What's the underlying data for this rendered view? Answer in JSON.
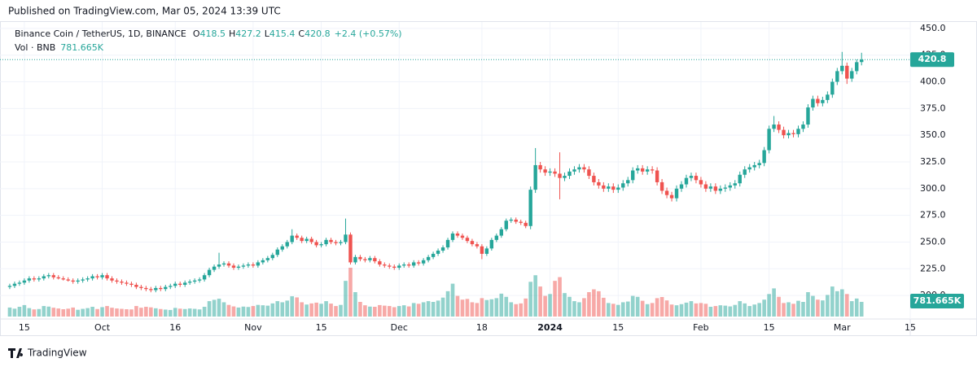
{
  "published": "Published on TradingView.com, Mar 05, 2024 13:39 UTC",
  "brand": "TradingView",
  "chart_data": {
    "type": "candlestick",
    "legend": {
      "symbol": "Binance Coin / TetherUS, 1D, BINANCE",
      "fields": [
        "O",
        "H",
        "L",
        "C"
      ],
      "change": "+2.4 (+0.57%)",
      "volume_title": "Vol · BNB",
      "volume_label": "781.665K"
    },
    "up_color": "#26a69a",
    "down_color": "#ef5350",
    "xlim": [
      "2023-09-10",
      "2024-03-15"
    ],
    "xticks": [
      {
        "value": "2023-09-15",
        "label": "15"
      },
      {
        "value": "2023-10-01",
        "label": "Oct"
      },
      {
        "value": "2023-10-16",
        "label": "16"
      },
      {
        "value": "2023-11-01",
        "label": "Nov"
      },
      {
        "value": "2023-11-15",
        "label": "15"
      },
      {
        "value": "2023-12-01",
        "label": "Dec"
      },
      {
        "value": "2023-12-18",
        "label": "18"
      },
      {
        "value": "2024-01-01",
        "label": "2024"
      },
      {
        "value": "2024-01-15",
        "label": "15"
      },
      {
        "value": "2024-02-01",
        "label": "Feb"
      },
      {
        "value": "2024-02-15",
        "label": "15"
      },
      {
        "value": "2024-03-01",
        "label": "Mar"
      },
      {
        "value": "2024-03-15",
        "label": "15"
      }
    ],
    "ylim": [
      178,
      456
    ],
    "yticks": [
      {
        "value": 200,
        "label": "200.0"
      },
      {
        "value": 225,
        "label": "225.0"
      },
      {
        "value": 250,
        "label": "250.0"
      },
      {
        "value": 275,
        "label": "275.0"
      },
      {
        "value": 300,
        "label": "300.0"
      },
      {
        "value": 325,
        "label": "325.0"
      },
      {
        "value": 350,
        "label": "350.0"
      },
      {
        "value": 375,
        "label": "375.0"
      },
      {
        "value": 400,
        "label": "400.0"
      },
      {
        "value": 425,
        "label": "425.0"
      },
      {
        "value": 450,
        "label": "450.0"
      }
    ],
    "grid": true,
    "x": [
      "2023-09-12",
      "2023-09-13",
      "2023-09-14",
      "2023-09-15",
      "2023-09-16",
      "2023-09-17",
      "2023-09-18",
      "2023-09-19",
      "2023-09-20",
      "2023-09-21",
      "2023-09-22",
      "2023-09-23",
      "2023-09-24",
      "2023-09-25",
      "2023-09-26",
      "2023-09-27",
      "2023-09-28",
      "2023-09-29",
      "2023-09-30",
      "2023-10-01",
      "2023-10-02",
      "2023-10-03",
      "2023-10-04",
      "2023-10-05",
      "2023-10-06",
      "2023-10-07",
      "2023-10-08",
      "2023-10-09",
      "2023-10-10",
      "2023-10-11",
      "2023-10-12",
      "2023-10-13",
      "2023-10-14",
      "2023-10-15",
      "2023-10-16",
      "2023-10-17",
      "2023-10-18",
      "2023-10-19",
      "2023-10-20",
      "2023-10-21",
      "2023-10-22",
      "2023-10-23",
      "2023-10-24",
      "2023-10-25",
      "2023-10-26",
      "2023-10-27",
      "2023-10-28",
      "2023-10-29",
      "2023-10-30",
      "2023-10-31",
      "2023-11-01",
      "2023-11-02",
      "2023-11-03",
      "2023-11-04",
      "2023-11-05",
      "2023-11-06",
      "2023-11-07",
      "2023-11-08",
      "2023-11-09",
      "2023-11-10",
      "2023-11-11",
      "2023-11-12",
      "2023-11-13",
      "2023-11-14",
      "2023-11-15",
      "2023-11-16",
      "2023-11-17",
      "2023-11-18",
      "2023-11-19",
      "2023-11-20",
      "2023-11-21",
      "2023-11-22",
      "2023-11-23",
      "2023-11-24",
      "2023-11-25",
      "2023-11-26",
      "2023-11-27",
      "2023-11-28",
      "2023-11-29",
      "2023-11-30",
      "2023-12-01",
      "2023-12-02",
      "2023-12-03",
      "2023-12-04",
      "2023-12-05",
      "2023-12-06",
      "2023-12-07",
      "2023-12-08",
      "2023-12-09",
      "2023-12-10",
      "2023-12-11",
      "2023-12-12",
      "2023-12-13",
      "2023-12-14",
      "2023-12-15",
      "2023-12-16",
      "2023-12-17",
      "2023-12-18",
      "2023-12-19",
      "2023-12-20",
      "2023-12-21",
      "2023-12-22",
      "2023-12-23",
      "2023-12-24",
      "2023-12-25",
      "2023-12-26",
      "2023-12-27",
      "2023-12-28",
      "2023-12-29",
      "2023-12-30",
      "2023-12-31",
      "2024-01-01",
      "2024-01-02",
      "2024-01-03",
      "2024-01-04",
      "2024-01-05",
      "2024-01-06",
      "2024-01-07",
      "2024-01-08",
      "2024-01-09",
      "2024-01-10",
      "2024-01-11",
      "2024-01-12",
      "2024-01-13",
      "2024-01-14",
      "2024-01-15",
      "2024-01-16",
      "2024-01-17",
      "2024-01-18",
      "2024-01-19",
      "2024-01-20",
      "2024-01-21",
      "2024-01-22",
      "2024-01-23",
      "2024-01-24",
      "2024-01-25",
      "2024-01-26",
      "2024-01-27",
      "2024-01-28",
      "2024-01-29",
      "2024-01-30",
      "2024-01-31",
      "2024-02-01",
      "2024-02-02",
      "2024-02-03",
      "2024-02-04",
      "2024-02-05",
      "2024-02-06",
      "2024-02-07",
      "2024-02-08",
      "2024-02-09",
      "2024-02-10",
      "2024-02-11",
      "2024-02-12",
      "2024-02-13",
      "2024-02-14",
      "2024-02-15",
      "2024-02-16",
      "2024-02-17",
      "2024-02-18",
      "2024-02-19",
      "2024-02-20",
      "2024-02-21",
      "2024-02-22",
      "2024-02-23",
      "2024-02-24",
      "2024-02-25",
      "2024-02-26",
      "2024-02-27",
      "2024-02-28",
      "2024-02-29",
      "2024-03-01",
      "2024-03-02",
      "2024-03-03",
      "2024-03-04",
      "2024-03-05"
    ],
    "open": [
      208,
      209,
      211,
      212,
      214,
      216,
      215,
      216,
      218,
      219,
      217,
      216,
      215,
      214,
      213,
      214,
      215,
      216,
      218,
      217,
      219,
      216,
      214,
      213,
      212,
      211,
      210,
      208,
      207,
      206,
      205,
      207,
      206,
      208,
      209,
      211,
      210,
      212,
      213,
      214,
      215,
      219,
      224,
      227,
      229,
      230,
      228,
      226,
      227,
      228,
      229,
      228,
      231,
      233,
      235,
      238,
      243,
      246,
      250,
      256,
      254,
      251,
      253,
      250,
      247,
      248,
      252,
      250,
      249,
      250,
      257,
      231,
      236,
      234,
      233,
      235,
      232,
      229,
      228,
      227,
      226,
      228,
      229,
      228,
      231,
      230,
      233,
      236,
      239,
      242,
      245,
      252,
      258,
      256,
      254,
      251,
      248,
      246,
      239,
      244,
      252,
      256,
      262,
      270,
      271,
      269,
      268,
      265,
      299,
      322,
      318,
      315,
      316,
      314,
      310,
      312,
      316,
      318,
      320,
      318,
      312,
      306,
      303,
      300,
      302,
      299,
      301,
      305,
      308,
      317,
      319,
      316,
      318,
      317,
      306,
      298,
      294,
      291,
      300,
      304,
      310,
      312,
      308,
      304,
      300,
      302,
      298,
      300,
      301,
      303,
      305,
      313,
      318,
      320,
      322,
      324,
      336,
      356,
      360,
      355,
      350,
      352,
      351,
      356,
      360,
      376,
      384,
      380,
      383,
      388,
      400,
      410,
      415,
      403,
      410,
      418.5
    ],
    "high": [
      211,
      213,
      214,
      216,
      218,
      218,
      218,
      220,
      221,
      221,
      219,
      218,
      217,
      216,
      216,
      217,
      218,
      220,
      220,
      221,
      221,
      218,
      216,
      215,
      214,
      213,
      212,
      210,
      209,
      208,
      209,
      209,
      210,
      211,
      213,
      213,
      214,
      215,
      216,
      217,
      221,
      226,
      229,
      240,
      232,
      232,
      230,
      229,
      230,
      231,
      231,
      233,
      235,
      237,
      240,
      245,
      248,
      252,
      262,
      258,
      256,
      255,
      255,
      252,
      250,
      254,
      254,
      252,
      252,
      272,
      259,
      238,
      238,
      236,
      237,
      237,
      234,
      231,
      230,
      229,
      230,
      231,
      231,
      233,
      233,
      235,
      238,
      241,
      244,
      247,
      254,
      260,
      260,
      258,
      256,
      253,
      250,
      248,
      246,
      254,
      258,
      264,
      272,
      273,
      273,
      271,
      270,
      302,
      338,
      325,
      321,
      319,
      319,
      334,
      315,
      319,
      321,
      323,
      323,
      321,
      315,
      309,
      306,
      305,
      305,
      304,
      308,
      311,
      320,
      322,
      322,
      321,
      321,
      320,
      309,
      301,
      297,
      303,
      307,
      313,
      315,
      315,
      311,
      307,
      305,
      305,
      303,
      304,
      306,
      308,
      316,
      321,
      323,
      325,
      327,
      339,
      359,
      368,
      363,
      358,
      355,
      355,
      359,
      363,
      379,
      387,
      387,
      386,
      391,
      403,
      413,
      428,
      418,
      413,
      421,
      427.2
    ],
    "low": [
      206,
      207,
      209,
      210,
      212,
      213,
      213,
      214,
      216,
      215,
      215,
      214,
      213,
      211,
      211,
      212,
      213,
      214,
      215,
      215,
      214,
      212,
      211,
      210,
      209,
      208,
      206,
      205,
      204,
      203,
      203,
      204,
      204,
      206,
      207,
      208,
      208,
      210,
      211,
      212,
      213,
      217,
      222,
      225,
      227,
      226,
      224,
      224,
      225,
      226,
      226,
      226,
      229,
      231,
      233,
      236,
      241,
      244,
      248,
      252,
      249,
      249,
      248,
      245,
      245,
      246,
      248,
      247,
      247,
      248,
      229,
      229,
      232,
      231,
      231,
      230,
      227,
      226,
      225,
      224,
      224,
      226,
      226,
      226,
      228,
      228,
      231,
      234,
      237,
      240,
      243,
      250,
      254,
      252,
      249,
      246,
      244,
      234,
      237,
      242,
      250,
      254,
      260,
      268,
      267,
      266,
      263,
      262,
      296,
      315,
      312,
      312,
      311,
      290,
      307,
      309,
      313,
      315,
      315,
      309,
      303,
      300,
      297,
      297,
      296,
      296,
      298,
      302,
      305,
      314,
      313,
      313,
      314,
      303,
      295,
      291,
      288,
      288,
      297,
      301,
      307,
      305,
      301,
      297,
      297,
      295,
      295,
      297,
      298,
      300,
      302,
      310,
      315,
      317,
      319,
      321,
      333,
      353,
      352,
      347,
      347,
      348,
      348,
      353,
      357,
      373,
      377,
      377,
      380,
      385,
      397,
      407,
      398,
      400,
      407,
      415.4
    ],
    "close": [
      209,
      211,
      212,
      214,
      216,
      215,
      216,
      218,
      219,
      217,
      216,
      215,
      214,
      213,
      214,
      215,
      216,
      218,
      217,
      219,
      216,
      214,
      213,
      212,
      211,
      210,
      208,
      207,
      206,
      205,
      207,
      206,
      208,
      209,
      211,
      210,
      212,
      213,
      214,
      215,
      219,
      224,
      227,
      229,
      230,
      228,
      226,
      227,
      228,
      229,
      228,
      231,
      233,
      235,
      238,
      243,
      246,
      250,
      256,
      254,
      251,
      253,
      250,
      247,
      248,
      252,
      250,
      249,
      250,
      257,
      231,
      236,
      234,
      233,
      235,
      232,
      229,
      228,
      227,
      226,
      228,
      229,
      228,
      231,
      230,
      233,
      236,
      239,
      242,
      245,
      252,
      258,
      256,
      254,
      251,
      248,
      246,
      239,
      244,
      252,
      256,
      262,
      270,
      271,
      269,
      268,
      265,
      299,
      322,
      318,
      315,
      316,
      314,
      310,
      312,
      316,
      318,
      320,
      318,
      312,
      306,
      303,
      300,
      302,
      299,
      301,
      305,
      308,
      317,
      319,
      316,
      318,
      317,
      306,
      298,
      294,
      291,
      300,
      304,
      310,
      312,
      308,
      304,
      300,
      302,
      298,
      300,
      301,
      303,
      305,
      313,
      318,
      320,
      322,
      324,
      336,
      356,
      360,
      355,
      350,
      352,
      351,
      356,
      360,
      376,
      384,
      380,
      383,
      388,
      400,
      410,
      415,
      403,
      410,
      418.4,
      420.8
    ],
    "volume": [
      480000,
      420000,
      520000,
      610000,
      450000,
      380000,
      400000,
      560000,
      530000,
      470000,
      430000,
      390000,
      420000,
      480000,
      360000,
      410000,
      450000,
      520000,
      400000,
      500000,
      560000,
      470000,
      430000,
      410000,
      390000,
      380000,
      560000,
      470000,
      520000,
      490000,
      440000,
      400000,
      370000,
      350000,
      460000,
      420000,
      400000,
      430000,
      410000,
      380000,
      520000,
      820000,
      890000,
      950000,
      760000,
      620000,
      540000,
      480000,
      530000,
      510000,
      560000,
      620000,
      600000,
      580000,
      700000,
      820000,
      760000,
      850000,
      1080000,
      1020000,
      760000,
      640000,
      700000,
      740000,
      680000,
      820000,
      690000,
      560000,
      620000,
      1900000,
      2600000,
      1300000,
      780000,
      600000,
      530000,
      520000,
      610000,
      580000,
      560000,
      500000,
      560000,
      600000,
      540000,
      720000,
      680000,
      760000,
      820000,
      780000,
      850000,
      1010000,
      1350000,
      1750000,
      1100000,
      900000,
      940000,
      760000,
      720000,
      980000,
      880000,
      920000,
      980000,
      1220000,
      1050000,
      760000,
      660000,
      700000,
      960000,
      1850000,
      2200000,
      1600000,
      1100000,
      1200000,
      1900000,
      2100000,
      1250000,
      1050000,
      820000,
      760000,
      980000,
      1300000,
      1450000,
      1350000,
      1000000,
      720000,
      680000,
      620000,
      760000,
      800000,
      1100000,
      1050000,
      840000,
      660000,
      720000,
      980000,
      1040000,
      860000,
      640000,
      600000,
      660000,
      740000,
      820000,
      700000,
      720000,
      680000,
      520000,
      560000,
      600000,
      580000,
      540000,
      620000,
      820000,
      700000,
      560000,
      640000,
      720000,
      900000,
      1200000,
      1500000,
      1050000,
      720000,
      760000,
      680000,
      840000,
      780000,
      1300000,
      1100000,
      900000,
      860000,
      1150000,
      1600000,
      1350000,
      1450000,
      1200000,
      820000,
      960000,
      781665
    ]
  }
}
